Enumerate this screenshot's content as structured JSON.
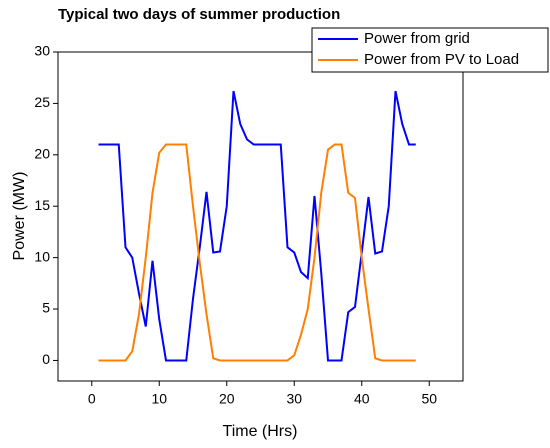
{
  "chart_data": {
    "type": "line",
    "title": "Typical two days of summer production",
    "xlabel": "Time (Hrs)",
    "ylabel": "Power (MW)",
    "x": [
      1,
      2,
      3,
      4,
      5,
      6,
      7,
      8,
      9,
      10,
      11,
      12,
      13,
      14,
      15,
      16,
      17,
      18,
      19,
      20,
      21,
      22,
      23,
      24,
      25,
      26,
      27,
      28,
      29,
      30,
      31,
      32,
      33,
      34,
      35,
      36,
      37,
      38,
      39,
      40,
      41,
      42,
      43,
      44,
      45,
      46,
      47,
      48
    ],
    "series": [
      {
        "name": "Power from grid",
        "color": "#0000ff",
        "values": [
          21,
          21,
          21,
          21,
          11,
          10,
          6.5,
          3.3,
          9.7,
          4,
          0,
          0,
          0,
          0,
          6,
          11,
          16.4,
          10.5,
          10.6,
          15,
          26.2,
          23,
          21.5,
          21,
          21,
          21,
          21,
          21,
          11,
          10.5,
          8.6,
          8,
          16,
          8.5,
          0,
          0,
          0,
          4.7,
          5.2,
          10.5,
          15.9,
          10.4,
          10.6,
          15,
          26.2,
          23,
          21,
          21
        ]
      },
      {
        "name": "Power from PV to Load",
        "color": "#ff8000",
        "values": [
          0,
          0,
          0,
          0,
          0,
          0.9,
          4.5,
          10,
          16.3,
          20.2,
          21,
          21,
          21,
          21,
          15,
          9.5,
          4.5,
          0.2,
          0,
          0,
          0,
          0,
          0,
          0,
          0,
          0,
          0,
          0,
          0,
          0.5,
          2.5,
          5,
          10,
          16.3,
          20.5,
          21,
          21,
          16.3,
          15.8,
          10,
          5,
          0.2,
          0,
          0,
          0,
          0,
          0,
          0
        ]
      }
    ],
    "xlim": [
      -5,
      55
    ],
    "xticks": [
      0,
      10,
      20,
      30,
      40,
      50
    ],
    "ylim": [
      -2,
      30
    ],
    "yticks": [
      0,
      5,
      10,
      15,
      20,
      25,
      30
    ],
    "legend": "upper right"
  }
}
